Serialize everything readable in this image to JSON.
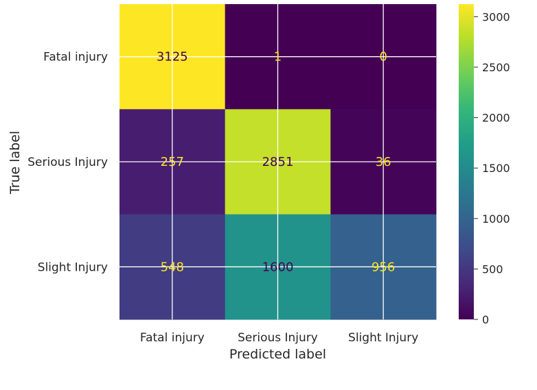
{
  "chart_data": {
    "type": "heatmap",
    "title": "",
    "xlabel": "Predicted label",
    "ylabel": "True label",
    "x_categories": [
      "Fatal injury",
      "Serious Injury",
      "Slight Injury"
    ],
    "y_categories": [
      "Fatal injury",
      "Serious Injury",
      "Slight Injury"
    ],
    "matrix": [
      [
        3125,
        1,
        0
      ],
      [
        257,
        2851,
        36
      ],
      [
        548,
        1600,
        956
      ]
    ],
    "colormap": "viridis",
    "vmin": 0,
    "vmax": 3125,
    "colorbar_ticks": [
      0,
      500,
      1000,
      1500,
      2000,
      2500,
      3000
    ],
    "grid": true,
    "legend": "colorbar-right"
  }
}
